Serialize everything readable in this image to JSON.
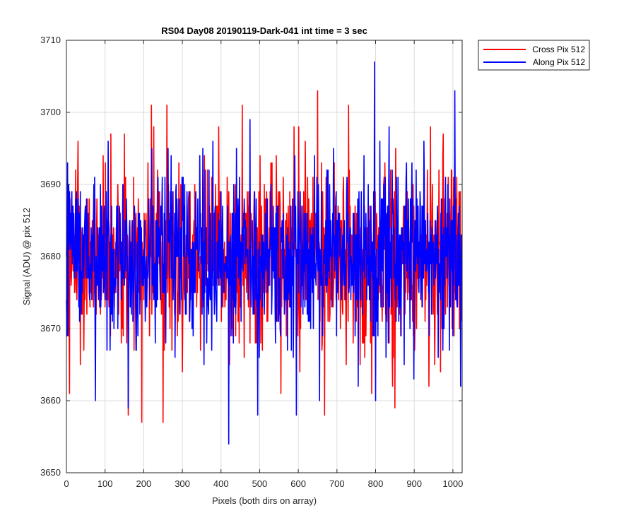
{
  "chart_data": {
    "type": "line",
    "title": "RS04 Day08 20190119-Dark-041 int time = 3 sec",
    "xlabel": "Pixels (both dirs on array)",
    "ylabel": "Signal (ADU) @ pix 512",
    "xlim": [
      0,
      1024
    ],
    "ylim": [
      3650,
      3710
    ],
    "xticks": [
      0,
      100,
      200,
      300,
      400,
      500,
      600,
      700,
      800,
      900,
      1000
    ],
    "yticks": [
      3650,
      3660,
      3670,
      3680,
      3690,
      3700,
      3710
    ],
    "grid": true,
    "legend": {
      "placement": "outside-top-right"
    },
    "x": {
      "start": 0,
      "end": 1023,
      "step": 1
    },
    "series": [
      {
        "name": "Cross Pix 512",
        "color": "#ff0000",
        "mean": 3680,
        "spread": 6,
        "peaks": [
          {
            "x": 8,
            "y": 3661
          },
          {
            "x": 115,
            "y": 3697
          },
          {
            "x": 150,
            "y": 3697
          },
          {
            "x": 160,
            "y": 3658
          },
          {
            "x": 195,
            "y": 3657
          },
          {
            "x": 220,
            "y": 3701
          },
          {
            "x": 250,
            "y": 3657
          },
          {
            "x": 260,
            "y": 3701
          },
          {
            "x": 455,
            "y": 3701
          },
          {
            "x": 555,
            "y": 3661
          },
          {
            "x": 650,
            "y": 3703
          },
          {
            "x": 668,
            "y": 3658
          },
          {
            "x": 730,
            "y": 3701
          },
          {
            "x": 790,
            "y": 3661
          },
          {
            "x": 850,
            "y": 3659
          }
        ]
      },
      {
        "name": "Along Pix 512",
        "color": "#0000ff",
        "mean": 3680,
        "spread": 6,
        "peaks": [
          {
            "x": 75,
            "y": 3700
          },
          {
            "x": 75,
            "y": 3660
          },
          {
            "x": 160,
            "y": 3659
          },
          {
            "x": 420,
            "y": 3654
          },
          {
            "x": 475,
            "y": 3699
          },
          {
            "x": 495,
            "y": 3658
          },
          {
            "x": 595,
            "y": 3658
          },
          {
            "x": 655,
            "y": 3660
          },
          {
            "x": 797,
            "y": 3707
          },
          {
            "x": 800,
            "y": 3660
          },
          {
            "x": 1005,
            "y": 3703
          },
          {
            "x": 1020,
            "y": 3662
          }
        ]
      }
    ]
  }
}
